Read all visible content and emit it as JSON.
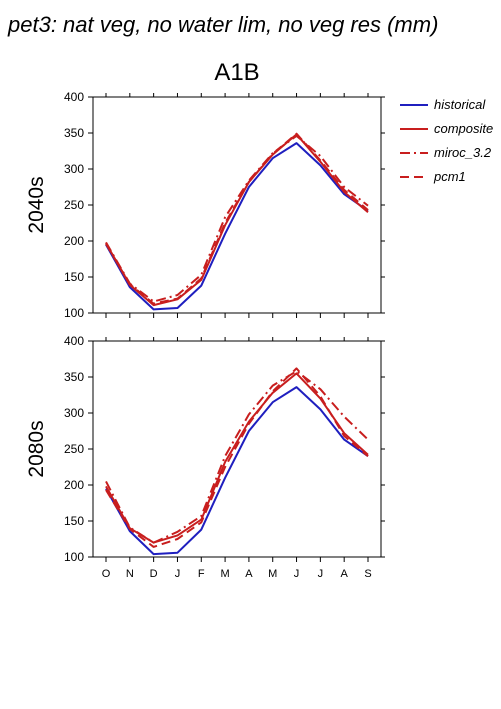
{
  "page_title": "pet3: nat veg, no water lim, no veg res (mm)",
  "scenario": "A1B",
  "colors": {
    "historical": "#1f1fbf",
    "composite": "#c81e1e",
    "miroc": "#c81e1e",
    "pcm1": "#c81e1e",
    "axis": "#000000"
  },
  "chart_data": [
    {
      "type": "line",
      "panel_label": "2040s",
      "categories": [
        "O",
        "N",
        "D",
        "J",
        "F",
        "M",
        "A",
        "M",
        "J",
        "J",
        "A",
        "S"
      ],
      "ylim": [
        100,
        400
      ],
      "yticks": [
        100,
        150,
        200,
        250,
        300,
        350,
        400
      ],
      "legend_position": "right",
      "series": [
        {
          "name": "historical",
          "style": "solid",
          "values": [
            195,
            136,
            105,
            107,
            138,
            210,
            275,
            315,
            336,
            305,
            265,
            242
          ]
        },
        {
          "name": "composite",
          "style": "solid",
          "values": [
            197,
            139,
            111,
            119,
            146,
            222,
            282,
            320,
            348,
            310,
            268,
            240
          ]
        },
        {
          "name": "miroc_3.2",
          "style": "dashdot",
          "values": [
            198,
            141,
            116,
            125,
            153,
            233,
            284,
            322,
            346,
            318,
            275,
            249
          ]
        },
        {
          "name": "pcm1",
          "style": "dashed",
          "values": [
            196,
            140,
            113,
            120,
            148,
            225,
            282,
            321,
            349,
            312,
            271,
            243
          ]
        }
      ]
    },
    {
      "type": "line",
      "panel_label": "2080s",
      "categories": [
        "O",
        "N",
        "D",
        "J",
        "F",
        "M",
        "A",
        "M",
        "J",
        "J",
        "A",
        "S"
      ],
      "ylim": [
        100,
        400
      ],
      "yticks": [
        100,
        150,
        200,
        250,
        300,
        350,
        400
      ],
      "series": [
        {
          "name": "historical",
          "style": "solid",
          "values": [
            195,
            136,
            104,
            106,
            138,
            210,
            275,
            315,
            336,
            305,
            263,
            240
          ]
        },
        {
          "name": "composite",
          "style": "solid",
          "values": [
            198,
            140,
            120,
            130,
            152,
            232,
            288,
            328,
            355,
            320,
            272,
            242
          ]
        },
        {
          "name": "miroc_3.2",
          "style": "dashdot",
          "values": [
            205,
            141,
            120,
            135,
            157,
            240,
            298,
            338,
            358,
            333,
            295,
            263
          ]
        },
        {
          "name": "pcm1",
          "style": "dashed",
          "values": [
            193,
            139,
            114,
            125,
            148,
            225,
            285,
            330,
            362,
            323,
            268,
            240
          ]
        }
      ]
    }
  ]
}
